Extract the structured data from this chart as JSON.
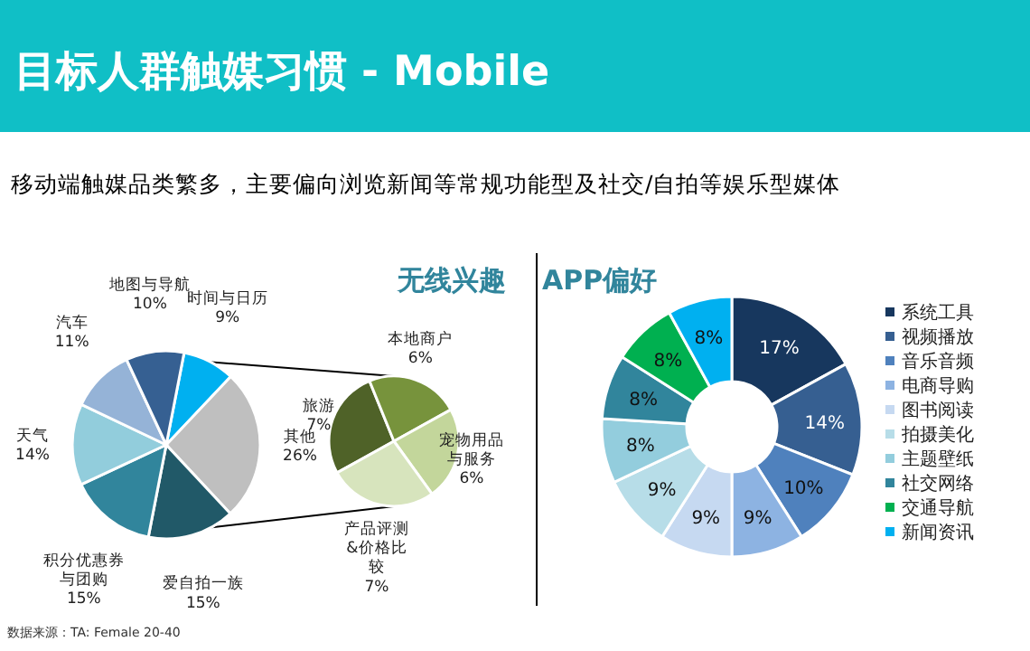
{
  "chart_data": [
    {
      "type": "other",
      "title": "目标人群触媒习惯 - Mobile",
      "subtitle": "移动端触媒品类繁多，主要偏向浏览新闻等常规功能型及社交/自拍等娱乐型媒体",
      "annotations": [
        "数据来源：TA: Female 20-40"
      ]
    },
    {
      "type": "pie",
      "categories": [
        "时间与日历",
        "其他",
        "爱自拍一族",
        "积分优惠券与团购",
        "天气",
        "汽车",
        "地图与导航"
      ],
      "values": [
        9,
        26,
        15,
        15,
        14,
        11,
        10
      ],
      "colors": [
        "#00b0f0",
        "#bfbfbf",
        "#215968",
        "#31859c",
        "#92cddc",
        "#95b3d7",
        "#366092"
      ],
      "value_labels": [
        "9%",
        "26%",
        "15%",
        "15%",
        "14%",
        "11%",
        "10%"
      ]
    },
    {
      "type": "pie",
      "title": "无线兴趣",
      "categories": [
        "旅游",
        "本地商户",
        "宠物用品与服务",
        "产品评测&价格比较"
      ],
      "values": [
        7,
        6,
        6,
        7
      ],
      "colors": [
        "#4f6228",
        "#77933c",
        "#c3d69b",
        "#d7e4bd"
      ],
      "value_labels": [
        "7%",
        "6%",
        "6%",
        "7%"
      ]
    },
    {
      "type": "donut",
      "title": "APP偏好",
      "categories": [
        "系统工具",
        "视频播放",
        "音乐音频",
        "电商导购",
        "图书阅读",
        "拍摄美化",
        "主题壁纸",
        "社交网络",
        "交通导航",
        "新闻资讯"
      ],
      "values": [
        17,
        14,
        10,
        9,
        9,
        9,
        8,
        8,
        8,
        8
      ],
      "colors": [
        "#17375e",
        "#365f91",
        "#4f81bd",
        "#8db3e2",
        "#c6d9f1",
        "#b7dde8",
        "#93cddd",
        "#31859c",
        "#00b050",
        "#00b0f0"
      ],
      "value_labels": [
        "17%",
        "14%",
        "10%",
        "9%",
        "9%",
        "9%",
        "8%",
        "8%",
        "8%",
        "8%"
      ],
      "legend": "right"
    }
  ]
}
